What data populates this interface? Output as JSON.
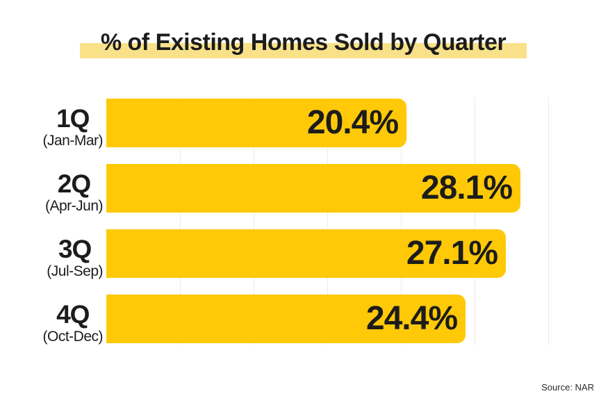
{
  "title": "% of Existing Homes Sold by Quarter",
  "source_note": "Source: NAR",
  "colors": {
    "bar": "#FFC907",
    "title_highlight": "#F8E189",
    "gridline": "#EBEBEB",
    "text": "#1C1C1C",
    "background": "#FFFFFF"
  },
  "chart_data": {
    "type": "bar",
    "orientation": "horizontal",
    "title": "% of Existing Homes Sold by Quarter",
    "categories": [
      "1Q",
      "2Q",
      "3Q",
      "4Q"
    ],
    "category_sublabels": [
      "(Jan-Mar)",
      "(Apr-Jun)",
      "(Jul-Sep)",
      "(Oct-Dec)"
    ],
    "values": [
      20.4,
      28.1,
      27.1,
      24.4
    ],
    "value_labels": [
      "20.4%",
      "28.1%",
      "27.1%",
      "24.4%"
    ],
    "unit": "%",
    "xlim": [
      0,
      33
    ],
    "gridline_step": 5,
    "grid": true,
    "legend": false,
    "source": "Source: NAR"
  }
}
